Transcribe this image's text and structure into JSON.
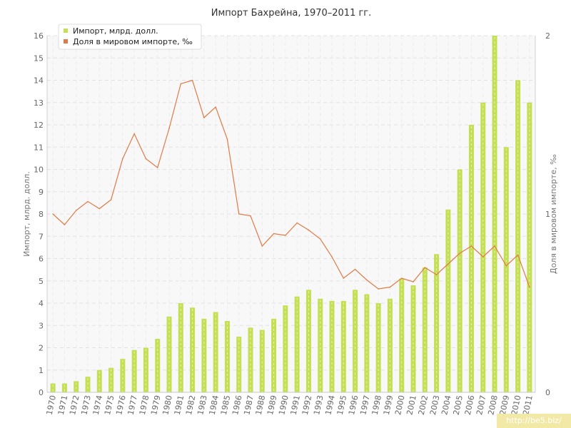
{
  "chart_data": {
    "type": "bar",
    "title": "Импорт Бахрейна, 1970–2011 гг.",
    "categories": [
      "1970",
      "1971",
      "1972",
      "1973",
      "1974",
      "1975",
      "1976",
      "1977",
      "1978",
      "1979",
      "1980",
      "1981",
      "1982",
      "1983",
      "1984",
      "1985",
      "1986",
      "1987",
      "1988",
      "1989",
      "1990",
      "1991",
      "1992",
      "1993",
      "1994",
      "1995",
      "1996",
      "1997",
      "1998",
      "1999",
      "2000",
      "2001",
      "2002",
      "2003",
      "2004",
      "2005",
      "2006",
      "2007",
      "2008",
      "2009",
      "2010",
      "2011"
    ],
    "series": [
      {
        "name": "Импорт, млрд. долл.",
        "type": "bar",
        "axis": "left",
        "color": "#c5df55",
        "values": [
          0.4,
          0.4,
          0.5,
          0.7,
          1.0,
          1.1,
          1.5,
          1.9,
          2.0,
          2.4,
          3.4,
          4.0,
          3.8,
          3.3,
          3.6,
          3.2,
          2.5,
          2.9,
          2.8,
          3.3,
          3.9,
          4.3,
          4.6,
          4.2,
          4.1,
          4.1,
          4.6,
          4.4,
          4.0,
          4.2,
          5.1,
          4.8,
          5.6,
          6.2,
          8.2,
          10.0,
          12.0,
          13.0,
          16.0,
          11.0,
          14.0,
          13.0
        ]
      },
      {
        "name": "Доля в мировом импорте, ‰",
        "type": "line",
        "axis": "right",
        "color": "#e07a45",
        "values": [
          1.0,
          0.94,
          1.02,
          1.07,
          1.03,
          1.08,
          1.31,
          1.45,
          1.31,
          1.26,
          1.48,
          1.73,
          1.75,
          1.54,
          1.6,
          1.42,
          1.0,
          0.99,
          0.82,
          0.89,
          0.88,
          0.95,
          0.91,
          0.86,
          0.76,
          0.64,
          0.69,
          0.63,
          0.58,
          0.59,
          0.64,
          0.62,
          0.7,
          0.66,
          0.72,
          0.78,
          0.82,
          0.76,
          0.82,
          0.71,
          0.77,
          0.59
        ]
      }
    ],
    "ylabel": "Импорт, млрд. долл.",
    "ylabel_right": "Доля в мировом импорте, ‰",
    "ylim": [
      0,
      16
    ],
    "y2lim": [
      0,
      2
    ],
    "yticks": [
      "0",
      "1",
      "2",
      "3",
      "4",
      "5",
      "6",
      "7",
      "8",
      "9",
      "10",
      "11",
      "12",
      "13",
      "14",
      "15",
      "16"
    ],
    "y2ticks": [
      "0",
      "1",
      "2"
    ],
    "grid": true,
    "legend_position": "top-left"
  },
  "watermark": "http://be5.biz/"
}
